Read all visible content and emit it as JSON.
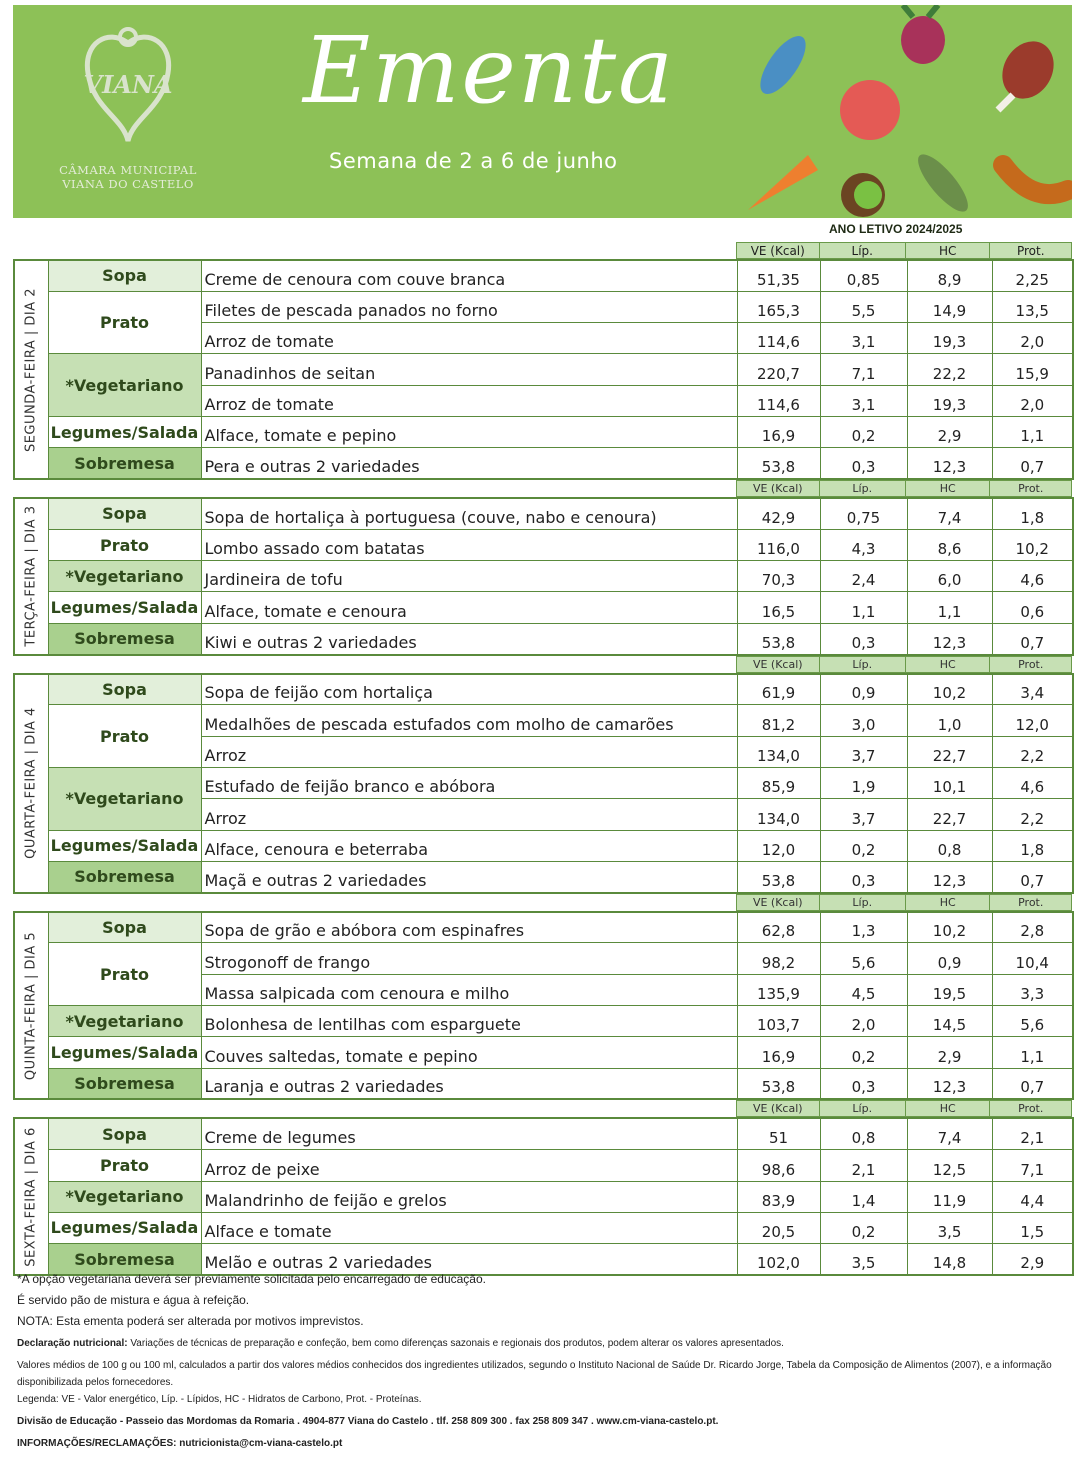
{
  "header": {
    "title": "Ementa",
    "subtitle": "Semana de 2 a 6 de junho",
    "logo_text": "VIANA",
    "municipality_line1": "CÂMARA MUNICIPAL",
    "municipality_line2": "VIANA DO CASTELO",
    "background": "#8dc157"
  },
  "school_year": "ANO LETIVO 2024/2025",
  "columns": [
    "VE (Kcal)",
    "Líp.",
    "HC",
    "Prot."
  ],
  "days": [
    {
      "label": "SEGUNDA-FEIRA | DIA 2",
      "groups": [
        {
          "category": "Sopa",
          "style": "sopa",
          "items": [
            [
              "Creme de cenoura com couve branca",
              "51,35",
              "0,85",
              "8,9",
              "2,25"
            ]
          ]
        },
        {
          "category": "Prato",
          "style": "prato",
          "items": [
            [
              "Filetes de pescada panados no forno",
              "165,3",
              "5,5",
              "14,9",
              "13,5"
            ],
            [
              "Arroz de tomate",
              "114,6",
              "3,1",
              "19,3",
              "2,0"
            ]
          ]
        },
        {
          "category": "*Vegetariano",
          "style": "veg",
          "items": [
            [
              "Panadinhos de seitan",
              "220,7",
              "7,1",
              "22,2",
              "15,9"
            ],
            [
              "Arroz de tomate",
              "114,6",
              "3,1",
              "19,3",
              "2,0"
            ]
          ]
        },
        {
          "category": "Legumes/Salada",
          "style": "leg",
          "items": [
            [
              "Alface, tomate e pepino",
              "16,9",
              "0,2",
              "2,9",
              "1,1"
            ]
          ]
        },
        {
          "category": "Sobremesa",
          "style": "sob",
          "items": [
            [
              "Pera e outras 2 variedades",
              "53,8",
              "0,3",
              "12,3",
              "0,7"
            ]
          ]
        }
      ]
    },
    {
      "label": "TERÇA-FEIRA | DIA 3",
      "groups": [
        {
          "category": "Sopa",
          "style": "sopa",
          "items": [
            [
              "Sopa de hortaliça à portuguesa (couve, nabo e cenoura)",
              "42,9",
              "0,75",
              "7,4",
              "1,8"
            ]
          ]
        },
        {
          "category": "Prato",
          "style": "prato",
          "items": [
            [
              "Lombo assado com batatas",
              "116,0",
              "4,3",
              "8,6",
              "10,2"
            ]
          ]
        },
        {
          "category": "*Vegetariano",
          "style": "veg",
          "items": [
            [
              "Jardineira de tofu",
              "70,3",
              "2,4",
              "6,0",
              "4,6"
            ]
          ]
        },
        {
          "category": "Legumes/Salada",
          "style": "leg",
          "items": [
            [
              "Alface, tomate  e cenoura",
              "16,5",
              "1,1",
              "1,1",
              "0,6"
            ]
          ]
        },
        {
          "category": "Sobremesa",
          "style": "sob",
          "items": [
            [
              "Kiwi e outras 2 variedades",
              "53,8",
              "0,3",
              "12,3",
              "0,7"
            ]
          ]
        }
      ]
    },
    {
      "label": "QUARTA-FEIRA | DIA 4",
      "groups": [
        {
          "category": "Sopa",
          "style": "sopa",
          "items": [
            [
              "Sopa de feijão com hortaliça",
              "61,9",
              "0,9",
              "10,2",
              "3,4"
            ]
          ]
        },
        {
          "category": "Prato",
          "style": "prato",
          "items": [
            [
              "Medalhões de pescada estufados com molho de camarões",
              "81,2",
              "3,0",
              "1,0",
              "12,0"
            ],
            [
              "Arroz",
              "134,0",
              "3,7",
              "22,7",
              "2,2"
            ]
          ]
        },
        {
          "category": "*Vegetariano",
          "style": "veg",
          "items": [
            [
              "Estufado de feijão branco e abóbora",
              "85,9",
              "1,9",
              "10,1",
              "4,6"
            ],
            [
              "Arroz",
              "134,0",
              "3,7",
              "22,7",
              "2,2"
            ]
          ]
        },
        {
          "category": "Legumes/Salada",
          "style": "leg",
          "items": [
            [
              "Alface, cenoura e beterraba",
              "12,0",
              "0,2",
              "0,8",
              "1,8"
            ]
          ]
        },
        {
          "category": "Sobremesa",
          "style": "sob",
          "items": [
            [
              "Maçã e outras 2 variedades",
              "53,8",
              "0,3",
              "12,3",
              "0,7"
            ]
          ]
        }
      ]
    },
    {
      "label": "QUINTA-FEIRA | DIA 5",
      "groups": [
        {
          "category": "Sopa",
          "style": "sopa",
          "items": [
            [
              "Sopa de grão e abóbora com espinafres",
              "62,8",
              "1,3",
              "10,2",
              "2,8"
            ]
          ]
        },
        {
          "category": "Prato",
          "style": "prato",
          "items": [
            [
              "Strogonoff de frango",
              "98,2",
              "5,6",
              "0,9",
              "10,4"
            ],
            [
              "Massa salpicada com cenoura e milho",
              "135,9",
              "4,5",
              "19,5",
              "3,3"
            ]
          ]
        },
        {
          "category": "*Vegetariano",
          "style": "veg",
          "items": [
            [
              "Bolonhesa de lentilhas com esparguete",
              "103,7",
              "2,0",
              "14,5",
              "5,6"
            ]
          ]
        },
        {
          "category": "Legumes/Salada",
          "style": "leg",
          "items": [
            [
              "Couves saltedas, tomate e pepino",
              "16,9",
              "0,2",
              "2,9",
              "1,1"
            ]
          ]
        },
        {
          "category": "Sobremesa",
          "style": "sob",
          "items": [
            [
              "Laranja e outras 2 variedades",
              "53,8",
              "0,3",
              "12,3",
              "0,7"
            ]
          ]
        }
      ]
    },
    {
      "label": "SEXTA-FEIRA | DIA 6",
      "groups": [
        {
          "category": "Sopa",
          "style": "sopa",
          "items": [
            [
              "Creme de legumes",
              "51",
              "0,8",
              "7,4",
              "2,1"
            ]
          ]
        },
        {
          "category": "Prato",
          "style": "prato",
          "items": [
            [
              "Arroz de peixe",
              "98,6",
              "2,1",
              "12,5",
              "7,1"
            ]
          ]
        },
        {
          "category": "*Vegetariano",
          "style": "veg",
          "items": [
            [
              "Malandrinho de feijão e grelos",
              "83,9",
              "1,4",
              "11,9",
              "4,4"
            ]
          ]
        },
        {
          "category": "Legumes/Salada",
          "style": "leg",
          "items": [
            [
              "Alface e tomate",
              "20,5",
              "0,2",
              "3,5",
              "1,5"
            ]
          ]
        },
        {
          "category": "Sobremesa",
          "style": "sob",
          "items": [
            [
              "Melão e outras 2 variedades",
              "102,0",
              "3,5",
              "14,8",
              "2,9"
            ]
          ]
        }
      ]
    }
  ],
  "footer": {
    "vegetarian_note": "*A opção vegetariana deverá ser previamente solicitada pelo encarregado de educação.",
    "bread_note": "É servido pão de mistura e água à refeição.",
    "nota": "NOTA: Esta ementa poderá ser alterada por motivos imprevistos.",
    "declaration_label": "Declaração nutricional:",
    "declaration_text": " Variações de técnicas de preparação e confeção, bem como diferenças sazonais e regionais dos produtos, podem alterar os valores apresentados.",
    "values_note": "Valores médios de 100 g ou 100 ml, calculados a partir dos valores médios conhecidos dos ingredientes utilizados, segundo o Instituto Nacional de Saúde Dr. Ricardo Jorge, Tabela da Composição de Alimentos (2007), e a informação disponibilizada pelos fornecedores.",
    "legend": "Legenda: VE - Valor energético, Líp. - Lípidos,  HC - Hidratos de Carbono, Prot. - Proteínas.",
    "address": "Divisão de Educação - Passeio das Mordomas da Romaria . 4904-877 Viana do Castelo . tlf. 258 809 300 . fax 258 809 347 . www.cm-viana-castelo.pt.",
    "contact": "INFORMAÇÕES/RECLAMAÇÕES: nutricionista@cm-viana-castelo.pt"
  },
  "colors": {
    "sopa": "#e2efda",
    "veg": "#c6e0b4",
    "sob": "#a9d08e",
    "border": "#5a8a3c",
    "category_text": "#2f4a1c"
  }
}
